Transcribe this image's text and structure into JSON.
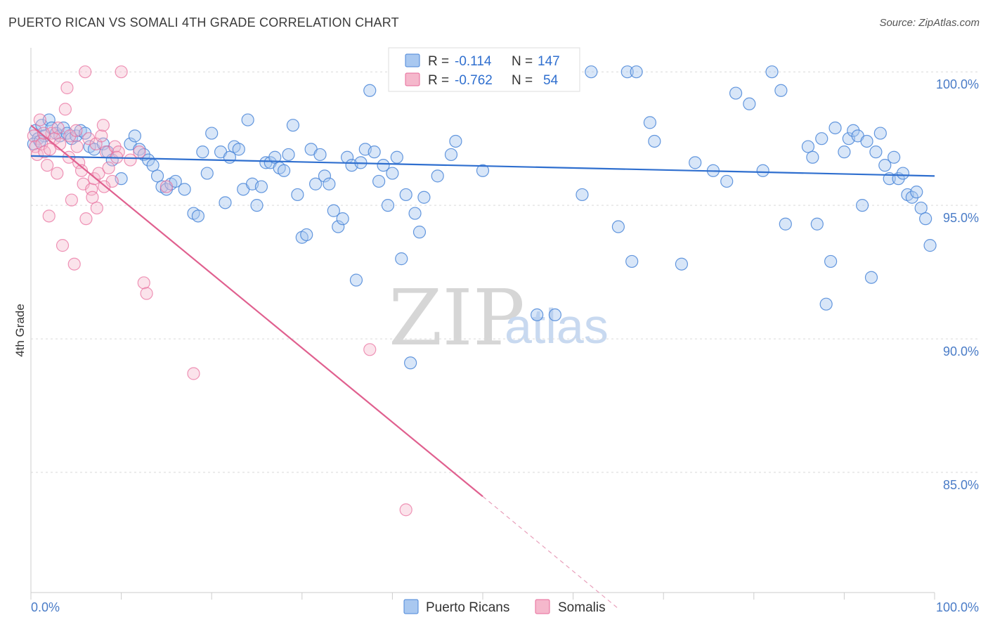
{
  "header": {
    "title": "PUERTO RICAN VS SOMALI 4TH GRADE CORRELATION CHART",
    "source": "Source: ZipAtlas.com"
  },
  "legend_box": {
    "rows": [
      {
        "r_label": "R =",
        "r_value": "-0.114",
        "n_label": "N =",
        "n_value": "147"
      },
      {
        "r_label": "R =",
        "r_value": "-0.762",
        "n_label": "N =",
        "n_value": "54"
      }
    ]
  },
  "bottom_legend": [
    "Puerto Ricans",
    "Somalis"
  ],
  "watermark": {
    "zip": "ZIP",
    "atlas": "atlas"
  },
  "colors": {
    "blue": "#4a86d8",
    "blue_fill": "#a9c8f0",
    "pink": "#e86a9a",
    "pink_fill": "#f5b8cc"
  },
  "chart_data": {
    "type": "scatter",
    "title": "PUERTO RICAN VS SOMALI 4TH GRADE CORRELATION CHART",
    "xlabel": "",
    "ylabel": "4th Grade",
    "xlim": [
      0,
      100
    ],
    "ylim": [
      80.5,
      100.9
    ],
    "x_tick_labels": [
      "0.0%",
      "100.0%"
    ],
    "y_ticks": [
      {
        "value": 100,
        "label": "100.0%"
      },
      {
        "value": 95,
        "label": "95.0%"
      },
      {
        "value": 90,
        "label": "90.0%"
      },
      {
        "value": 85,
        "label": "85.0%"
      }
    ],
    "grid": true,
    "legend_position": "top-center",
    "series": [
      {
        "name": "Puerto Ricans",
        "r": -0.114,
        "n": 147,
        "trend": {
          "x0": 0,
          "y0": 96.85,
          "x1": 100,
          "y1": 96.1
        },
        "points": [
          [
            0.5,
            97.8
          ],
          [
            0.8,
            97.5
          ],
          [
            1.2,
            98.0
          ],
          [
            1.5,
            97.6
          ],
          [
            2.0,
            98.2
          ],
          [
            2.3,
            97.9
          ],
          [
            2.8,
            97.7
          ],
          [
            3.2,
            97.6
          ],
          [
            3.6,
            97.9
          ],
          [
            4.0,
            97.7
          ],
          [
            4.5,
            97.5
          ],
          [
            5.0,
            97.6
          ],
          [
            5.5,
            97.8
          ],
          [
            6.0,
            97.7
          ],
          [
            6.5,
            97.2
          ],
          [
            7.0,
            97.1
          ],
          [
            8.0,
            97.3
          ],
          [
            8.5,
            97.0
          ],
          [
            9.0,
            96.7
          ],
          [
            10.0,
            96.0
          ],
          [
            11.0,
            97.3
          ],
          [
            11.5,
            97.6
          ],
          [
            12.0,
            97.1
          ],
          [
            12.5,
            96.9
          ],
          [
            13.0,
            96.7
          ],
          [
            13.5,
            96.5
          ],
          [
            14.0,
            96.1
          ],
          [
            14.5,
            95.7
          ],
          [
            15.0,
            95.6
          ],
          [
            15.5,
            95.8
          ],
          [
            16.0,
            95.9
          ],
          [
            17.0,
            95.6
          ],
          [
            18.0,
            94.7
          ],
          [
            18.5,
            94.6
          ],
          [
            19.0,
            97.0
          ],
          [
            19.5,
            96.2
          ],
          [
            20.0,
            97.7
          ],
          [
            21.0,
            97.0
          ],
          [
            21.5,
            95.1
          ],
          [
            22.0,
            96.8
          ],
          [
            22.5,
            97.2
          ],
          [
            23.0,
            97.1
          ],
          [
            23.5,
            95.6
          ],
          [
            24.0,
            98.2
          ],
          [
            24.5,
            95.8
          ],
          [
            25.0,
            95.0
          ],
          [
            25.5,
            95.7
          ],
          [
            26.0,
            96.6
          ],
          [
            26.5,
            96.6
          ],
          [
            27.0,
            96.8
          ],
          [
            27.5,
            96.4
          ],
          [
            28.0,
            96.3
          ],
          [
            28.5,
            96.9
          ],
          [
            29.0,
            98.0
          ],
          [
            29.5,
            95.4
          ],
          [
            30.0,
            93.8
          ],
          [
            30.5,
            93.9
          ],
          [
            31.0,
            97.1
          ],
          [
            31.5,
            95.8
          ],
          [
            32.0,
            96.9
          ],
          [
            32.5,
            96.1
          ],
          [
            33.0,
            95.8
          ],
          [
            33.5,
            94.8
          ],
          [
            34.0,
            94.2
          ],
          [
            34.5,
            94.5
          ],
          [
            35.0,
            96.8
          ],
          [
            35.5,
            96.5
          ],
          [
            36.0,
            92.2
          ],
          [
            36.5,
            96.6
          ],
          [
            37.0,
            97.1
          ],
          [
            37.5,
            99.3
          ],
          [
            38.0,
            97.0
          ],
          [
            38.5,
            95.9
          ],
          [
            39.0,
            96.5
          ],
          [
            39.5,
            95.0
          ],
          [
            40.0,
            96.2
          ],
          [
            40.5,
            96.8
          ],
          [
            41.0,
            93.0
          ],
          [
            41.5,
            95.4
          ],
          [
            42.0,
            89.1
          ],
          [
            42.5,
            94.7
          ],
          [
            43.0,
            94.0
          ],
          [
            43.5,
            95.3
          ],
          [
            44.0,
            100.0
          ],
          [
            45.0,
            96.1
          ],
          [
            46.0,
            99.8
          ],
          [
            46.5,
            96.9
          ],
          [
            47.0,
            97.4
          ],
          [
            48.0,
            100.0
          ],
          [
            50.0,
            96.3
          ],
          [
            51.0,
            100.0
          ],
          [
            52.0,
            100.0
          ],
          [
            53.0,
            100.0
          ],
          [
            56.0,
            90.9
          ],
          [
            58.0,
            90.9
          ],
          [
            60.0,
            100.0
          ],
          [
            61.0,
            95.4
          ],
          [
            62.0,
            100.0
          ],
          [
            65.0,
            94.2
          ],
          [
            66.0,
            100.0
          ],
          [
            66.5,
            92.9
          ],
          [
            67.0,
            100.0
          ],
          [
            68.5,
            98.1
          ],
          [
            69.0,
            97.4
          ],
          [
            72.0,
            92.8
          ],
          [
            73.5,
            96.6
          ],
          [
            75.5,
            96.3
          ],
          [
            77.0,
            95.9
          ],
          [
            78.0,
            99.2
          ],
          [
            79.5,
            98.8
          ],
          [
            81.0,
            96.3
          ],
          [
            82.0,
            100.0
          ],
          [
            83.0,
            99.3
          ],
          [
            83.5,
            94.3
          ],
          [
            86.0,
            97.2
          ],
          [
            86.5,
            96.8
          ],
          [
            87.0,
            94.3
          ],
          [
            87.5,
            97.5
          ],
          [
            88.0,
            91.3
          ],
          [
            88.5,
            92.9
          ],
          [
            89.0,
            97.9
          ],
          [
            90.0,
            97.0
          ],
          [
            90.5,
            97.5
          ],
          [
            91.0,
            97.8
          ],
          [
            91.5,
            97.6
          ],
          [
            92.0,
            95.0
          ],
          [
            92.5,
            97.4
          ],
          [
            93.0,
            92.3
          ],
          [
            93.5,
            97.0
          ],
          [
            94.0,
            97.7
          ],
          [
            94.5,
            96.5
          ],
          [
            95.0,
            96.0
          ],
          [
            95.5,
            96.8
          ],
          [
            96.0,
            96.0
          ],
          [
            96.5,
            96.2
          ],
          [
            97.0,
            95.4
          ],
          [
            97.5,
            95.3
          ],
          [
            98.0,
            95.5
          ],
          [
            98.5,
            94.9
          ],
          [
            99.0,
            94.5
          ],
          [
            99.5,
            93.5
          ],
          [
            0.3,
            97.3
          ],
          [
            1.0,
            97.4
          ]
        ]
      },
      {
        "name": "Somalis",
        "r": -0.762,
        "n": 54,
        "trend": {
          "x0": 0,
          "y0": 98.0,
          "x1": 50,
          "y1": 84.1
        },
        "trend_dashed": {
          "x0": 50,
          "y0": 84.1,
          "x1": 65,
          "y1": 79.9
        },
        "points": [
          [
            0.3,
            97.6
          ],
          [
            0.5,
            97.2
          ],
          [
            0.7,
            96.9
          ],
          [
            1.0,
            98.2
          ],
          [
            1.2,
            97.3
          ],
          [
            1.5,
            97.0
          ],
          [
            1.8,
            96.5
          ],
          [
            2.0,
            94.6
          ],
          [
            2.3,
            97.7
          ],
          [
            2.6,
            97.5
          ],
          [
            2.9,
            96.2
          ],
          [
            3.2,
            97.3
          ],
          [
            3.5,
            93.5
          ],
          [
            3.8,
            98.6
          ],
          [
            4.0,
            99.4
          ],
          [
            4.3,
            97.6
          ],
          [
            4.5,
            95.2
          ],
          [
            4.8,
            92.8
          ],
          [
            5.0,
            97.8
          ],
          [
            5.3,
            96.6
          ],
          [
            5.6,
            96.3
          ],
          [
            5.8,
            95.8
          ],
          [
            6.1,
            94.5
          ],
          [
            6.4,
            97.5
          ],
          [
            6.7,
            95.6
          ],
          [
            7.0,
            96.0
          ],
          [
            7.2,
            97.3
          ],
          [
            7.5,
            96.2
          ],
          [
            7.8,
            97.6
          ],
          [
            8.0,
            98.0
          ],
          [
            8.3,
            97.0
          ],
          [
            8.6,
            96.4
          ],
          [
            9.0,
            95.9
          ],
          [
            9.3,
            97.2
          ],
          [
            9.7,
            97.0
          ],
          [
            10.0,
            100.0
          ],
          [
            11.0,
            96.7
          ],
          [
            12.0,
            97.0
          ],
          [
            12.5,
            92.1
          ],
          [
            12.8,
            91.7
          ],
          [
            15.0,
            95.7
          ],
          [
            18.0,
            88.7
          ],
          [
            37.5,
            89.6
          ],
          [
            41.5,
            83.6
          ],
          [
            6.0,
            100.0
          ],
          [
            1.4,
            97.7
          ],
          [
            2.1,
            97.1
          ],
          [
            3.0,
            97.9
          ],
          [
            4.2,
            96.8
          ],
          [
            5.1,
            97.2
          ],
          [
            6.8,
            95.3
          ],
          [
            7.3,
            94.9
          ],
          [
            8.1,
            95.7
          ],
          [
            9.5,
            96.8
          ]
        ]
      }
    ]
  }
}
